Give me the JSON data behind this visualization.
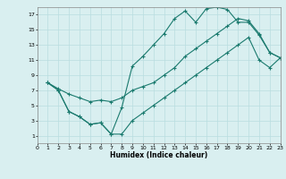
{
  "xlabel": "Humidex (Indice chaleur)",
  "xlim": [
    0,
    23
  ],
  "ylim": [
    0,
    18
  ],
  "xticks": [
    0,
    1,
    2,
    3,
    4,
    5,
    6,
    7,
    8,
    9,
    10,
    11,
    12,
    13,
    14,
    15,
    16,
    17,
    18,
    19,
    20,
    21,
    22,
    23
  ],
  "yticks": [
    1,
    3,
    5,
    7,
    9,
    11,
    13,
    15,
    17
  ],
  "line_color": "#1a7a6e",
  "bg_color": "#d9eff0",
  "grid_color": "#b8dde0",
  "line1_x": [
    1,
    2,
    3,
    4,
    5,
    6,
    7,
    8,
    9,
    10,
    11,
    12,
    13,
    14,
    15,
    16,
    17,
    18,
    19,
    20,
    21,
    22,
    23
  ],
  "line1_y": [
    8.0,
    7.0,
    4.2,
    3.5,
    2.5,
    2.7,
    1.2,
    4.7,
    10.2,
    11.5,
    13.0,
    14.5,
    16.5,
    17.5,
    16.0,
    17.8,
    18.0,
    17.7,
    16.0,
    16.0,
    14.3,
    12.0,
    11.3
  ],
  "line2_x": [
    1,
    2,
    3,
    4,
    5,
    6,
    7,
    8,
    9,
    10,
    11,
    12,
    13,
    14,
    15,
    16,
    17,
    18,
    19,
    20,
    21,
    22,
    23
  ],
  "line2_y": [
    8.0,
    7.2,
    6.5,
    6.0,
    5.5,
    5.7,
    5.5,
    6.0,
    7.0,
    7.5,
    8.0,
    9.0,
    10.0,
    11.5,
    12.5,
    13.5,
    14.5,
    15.5,
    16.5,
    16.2,
    14.5,
    12.0,
    11.3
  ],
  "line3_x": [
    1,
    2,
    3,
    4,
    5,
    6,
    7,
    8,
    9,
    10,
    11,
    12,
    13,
    14,
    15,
    16,
    17,
    18,
    19,
    20,
    21,
    22,
    23
  ],
  "line3_y": [
    8.0,
    7.0,
    4.2,
    3.5,
    2.5,
    2.7,
    1.2,
    1.2,
    3.0,
    4.0,
    5.0,
    6.0,
    7.0,
    8.0,
    9.0,
    10.0,
    11.0,
    12.0,
    13.0,
    14.0,
    11.0,
    10.0,
    11.3
  ]
}
